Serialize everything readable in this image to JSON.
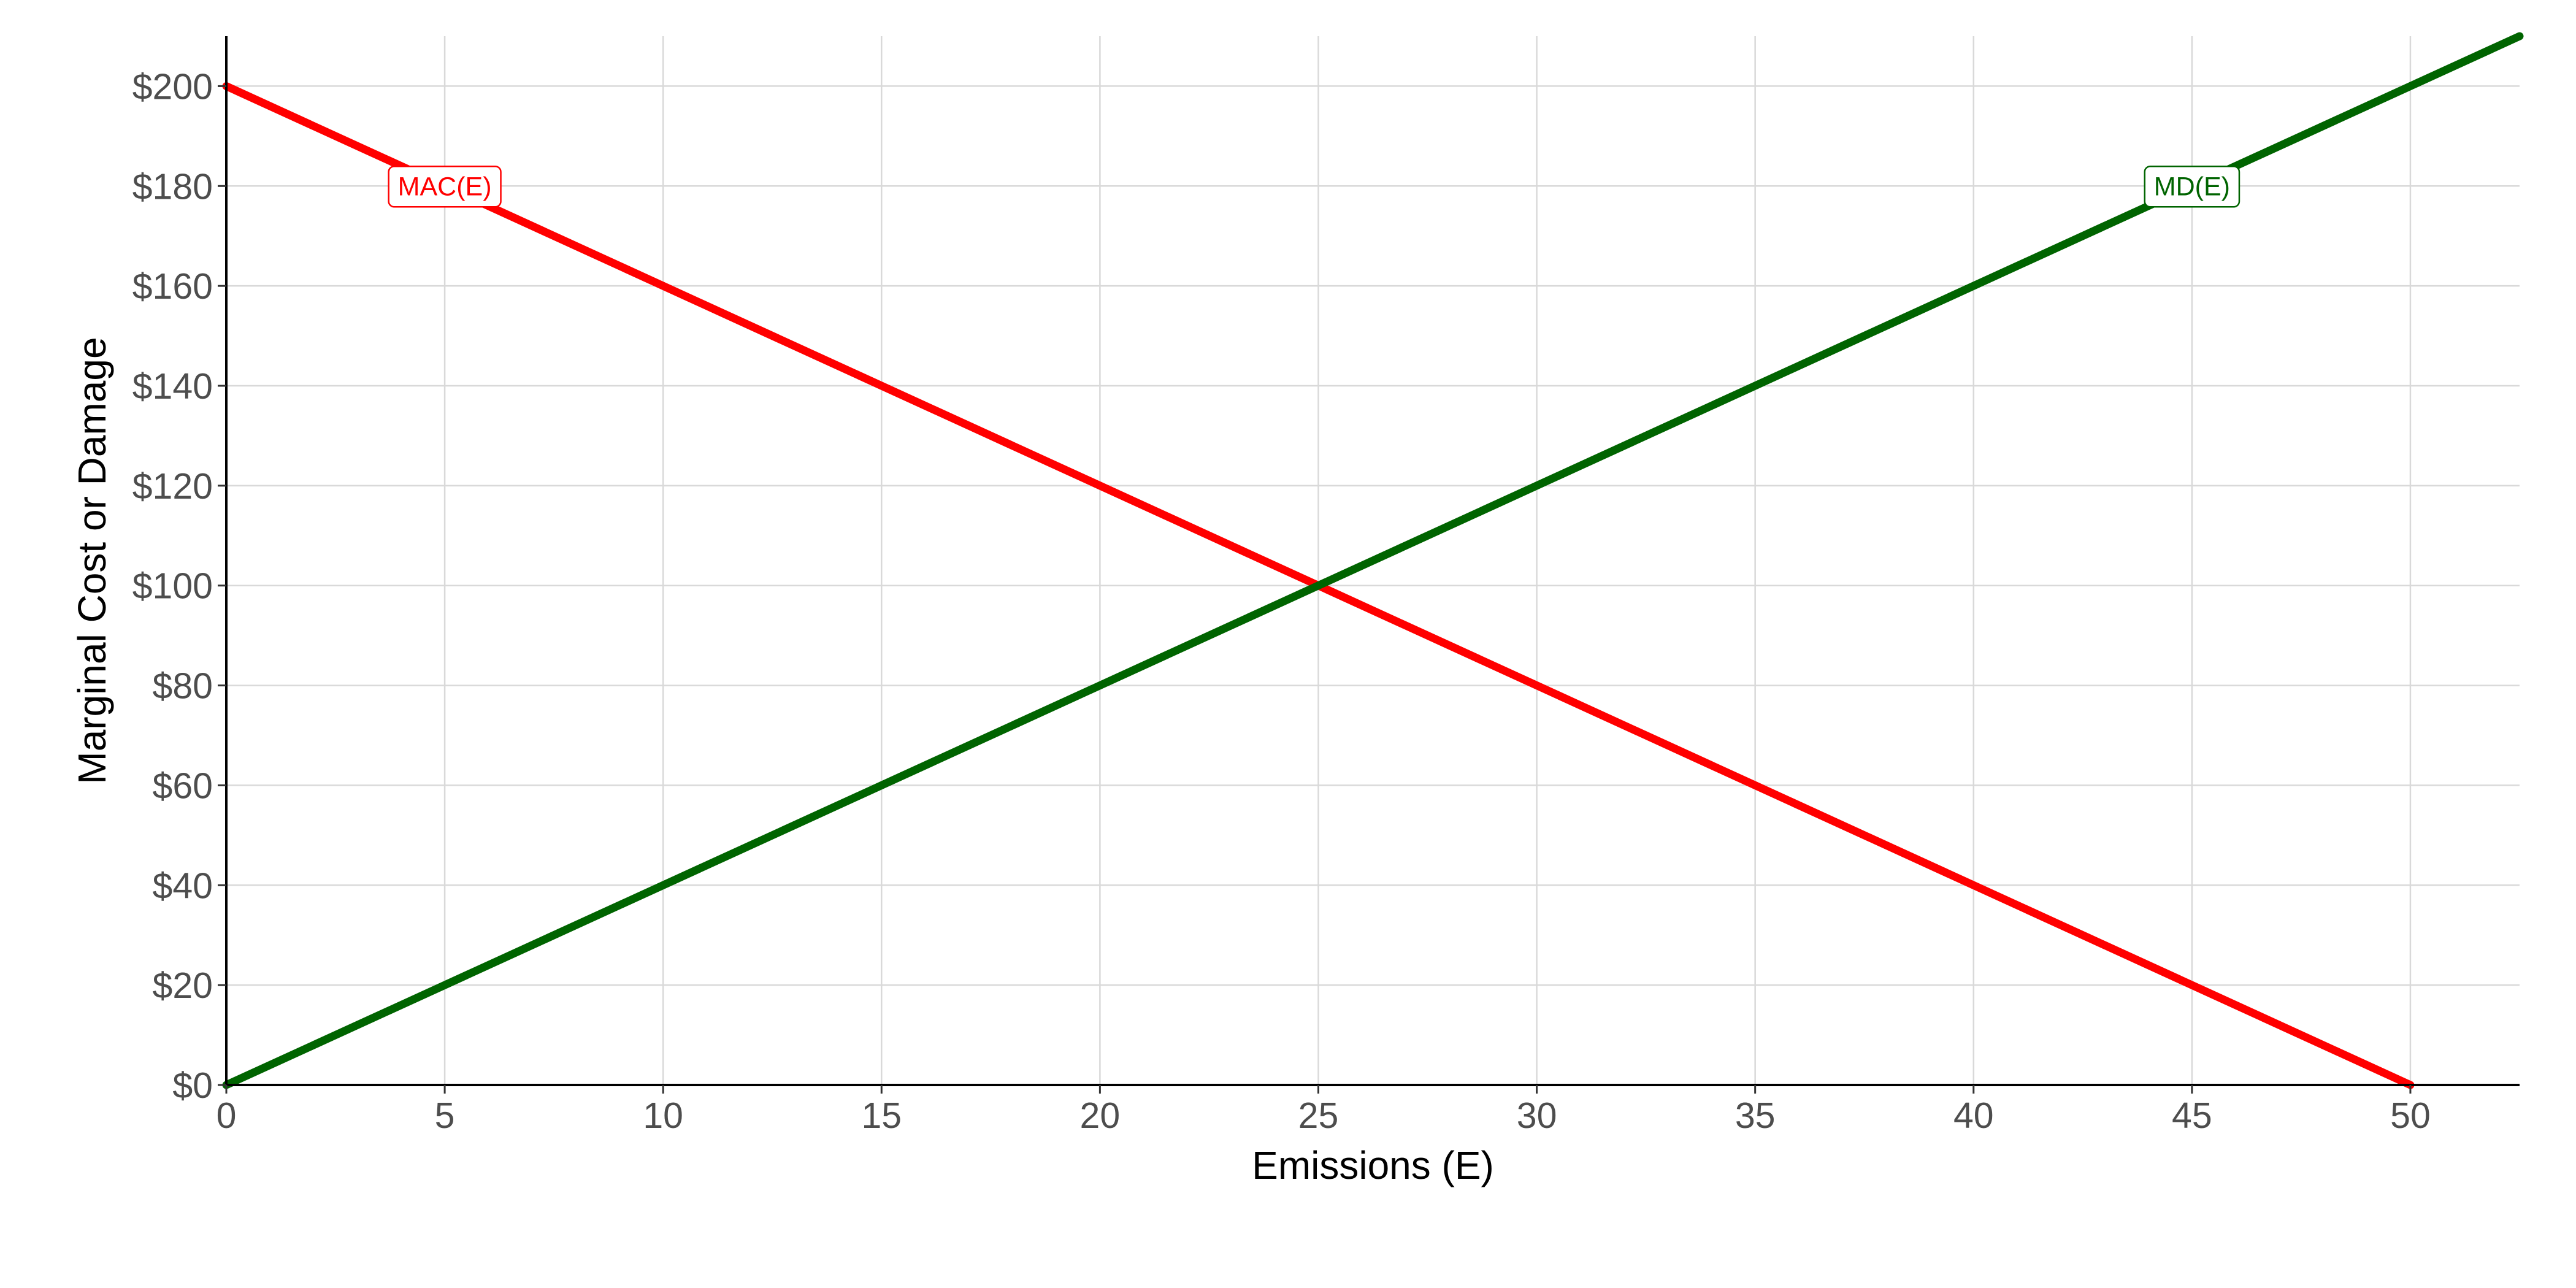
{
  "chart_data": {
    "type": "line",
    "title": "",
    "xlabel": "Emissions (E)",
    "ylabel": "Marginal Cost or Damage",
    "xlim": [
      0,
      52.5
    ],
    "ylim": [
      0,
      210
    ],
    "x_ticks": [
      0,
      5,
      10,
      15,
      20,
      25,
      30,
      35,
      40,
      45,
      50
    ],
    "x_tick_labels": [
      "0",
      "5",
      "10",
      "15",
      "20",
      "25",
      "30",
      "35",
      "40",
      "45",
      "50"
    ],
    "y_ticks": [
      0,
      20,
      40,
      60,
      80,
      100,
      120,
      140,
      160,
      180,
      200
    ],
    "y_tick_labels": [
      "$0",
      "$20",
      "$40",
      "$60",
      "$80",
      "$100",
      "$120",
      "$140",
      "$160",
      "$180",
      "$200"
    ],
    "grid": true,
    "series": [
      {
        "name": "MAC(E)",
        "color": "#ff0000",
        "x": [
          0,
          50
        ],
        "y": [
          200,
          0
        ],
        "label": {
          "text": "MAC(E)",
          "x": 5,
          "y": 180
        }
      },
      {
        "name": "MD(E)",
        "color": "#006400",
        "x": [
          0,
          52.5
        ],
        "y": [
          0,
          210
        ],
        "label": {
          "text": "MD(E)",
          "x": 45,
          "y": 180
        }
      }
    ]
  }
}
